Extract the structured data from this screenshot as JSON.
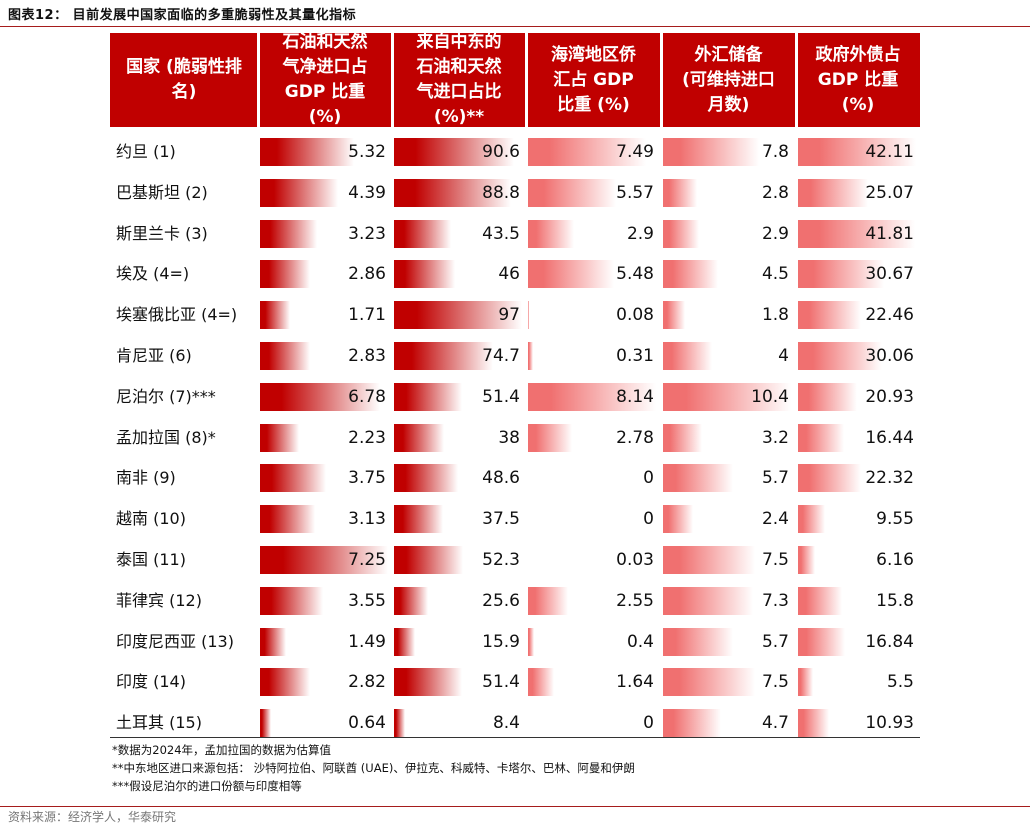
{
  "title": "图表12： 目前发展中国家面临的多重脆弱性及其量化指标",
  "headers": {
    "country": "国家 (脆弱性排\n名)",
    "c1": "石油和天然\n气净进口占\nGDP 比重\n(%)",
    "c2": "来自中东的\n石油和天然\n气进口占比\n(%)**",
    "c3": "海湾地区侨\n汇占 GDP\n比重 (%)",
    "c4": "外汇储备\n(可维持进口\n月数)",
    "c5": "政府外债占\nGDP 比重\n(%)"
  },
  "chart_data": {
    "type": "table",
    "columns": [
      "国家 (脆弱性排名)",
      "石油和天然气净进口占GDP比重(%)",
      "来自中东的石油和天然气进口占比(%)**",
      "海湾地区侨汇占GDP比重(%)",
      "外汇储备(可维持进口月数)",
      "政府外债占GDP比重(%)"
    ],
    "rows": [
      {
        "country": "约旦 (1)",
        "values": [
          5.32,
          90.6,
          7.49,
          7.8,
          42.11
        ]
      },
      {
        "country": "巴基斯坦 (2)",
        "values": [
          4.39,
          88.8,
          5.57,
          2.8,
          25.07
        ]
      },
      {
        "country": "斯里兰卡 (3)",
        "values": [
          3.23,
          43.5,
          2.9,
          2.9,
          41.81
        ]
      },
      {
        "country": "埃及 (4=)",
        "values": [
          2.86,
          46,
          5.48,
          4.5,
          30.67
        ]
      },
      {
        "country": "埃塞俄比亚 (4=)",
        "values": [
          1.71,
          97,
          0.08,
          1.8,
          22.46
        ]
      },
      {
        "country": "肯尼亚 (6)",
        "values": [
          2.83,
          74.7,
          0.31,
          4,
          30.06
        ]
      },
      {
        "country": "尼泊尔 (7)***",
        "values": [
          6.78,
          51.4,
          8.14,
          10.4,
          20.93
        ]
      },
      {
        "country": "孟加拉国 (8)*",
        "values": [
          2.23,
          38,
          2.78,
          3.2,
          16.44
        ]
      },
      {
        "country": "南非 (9)",
        "values": [
          3.75,
          48.6,
          0,
          5.7,
          22.32
        ]
      },
      {
        "country": "越南 (10)",
        "values": [
          3.13,
          37.5,
          0,
          2.4,
          9.55
        ]
      },
      {
        "country": "泰国 (11)",
        "values": [
          7.25,
          52.3,
          0.03,
          7.5,
          6.16
        ]
      },
      {
        "country": "菲律宾 (12)",
        "values": [
          3.55,
          25.6,
          2.55,
          7.3,
          15.8
        ]
      },
      {
        "country": "印度尼西亚 (13)",
        "values": [
          1.49,
          15.9,
          0.4,
          5.7,
          16.84
        ]
      },
      {
        "country": "印度 (14)",
        "values": [
          2.82,
          51.4,
          1.64,
          7.5,
          5.5
        ]
      },
      {
        "country": "土耳其 (15)",
        "values": [
          0.64,
          8.4,
          0,
          4.7,
          10.93
        ]
      }
    ]
  },
  "colors": {
    "header_bg": "#c00000",
    "bar_strong": "#c00000",
    "bar_light": "#f07070",
    "bar_fade": "#ffffff"
  },
  "notes": [
    "*数据为2024年，孟加拉国的数据为估算值",
    "**中东地区进口来源包括： 沙特阿拉伯、阿联酋 (UAE)、伊拉克、科威特、卡塔尔、巴林、阿曼和伊朗",
    "***假设尼泊尔的进口份额与印度相等"
  ],
  "source": "资料来源：经济学人，华泰研究"
}
